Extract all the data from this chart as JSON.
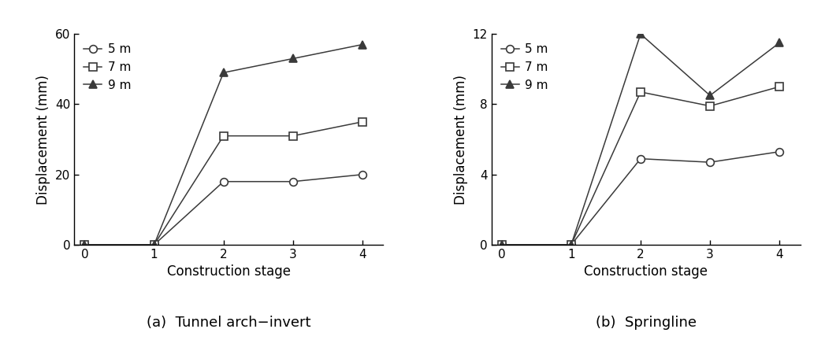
{
  "stages": [
    0,
    1,
    2,
    3,
    4
  ],
  "left": {
    "title": "(a)  Tunnel arch−invert",
    "ylabel": "Displacement (mm)",
    "xlabel": "Construction stage",
    "ylim": [
      0,
      60
    ],
    "yticks": [
      0,
      20,
      40,
      60
    ],
    "xlim": [
      -0.15,
      4.3
    ],
    "series": [
      {
        "label": "5 m",
        "marker": "o",
        "data": [
          0,
          0,
          18,
          18,
          20
        ]
      },
      {
        "label": "7 m",
        "marker": "s",
        "data": [
          0,
          0,
          31,
          31,
          35
        ]
      },
      {
        "label": "9 m",
        "marker": "^",
        "data": [
          0,
          0,
          49,
          53,
          57
        ]
      }
    ]
  },
  "right": {
    "title": "(b)  Springline",
    "ylabel": "Displacement (mm)",
    "xlabel": "Construction stage",
    "ylim": [
      0,
      12
    ],
    "yticks": [
      0,
      4,
      8,
      12
    ],
    "xlim": [
      -0.15,
      4.3
    ],
    "series": [
      {
        "label": "5 m",
        "marker": "o",
        "data": [
          0,
          0,
          4.9,
          4.7,
          5.3
        ]
      },
      {
        "label": "7 m",
        "marker": "s",
        "data": [
          0,
          0,
          8.7,
          7.9,
          9.0
        ]
      },
      {
        "label": "9 m",
        "marker": "^",
        "data": [
          0,
          0,
          12.0,
          8.5,
          11.5
        ]
      }
    ]
  },
  "line_color": "#3a3a3a",
  "marker_facecolor": "white",
  "marker_facecolor_triangle": "#3a3a3a",
  "marker_size": 7,
  "line_width": 1.1,
  "legend_fontsize": 11,
  "axis_label_fontsize": 12,
  "tick_fontsize": 11,
  "caption_fontsize": 13
}
